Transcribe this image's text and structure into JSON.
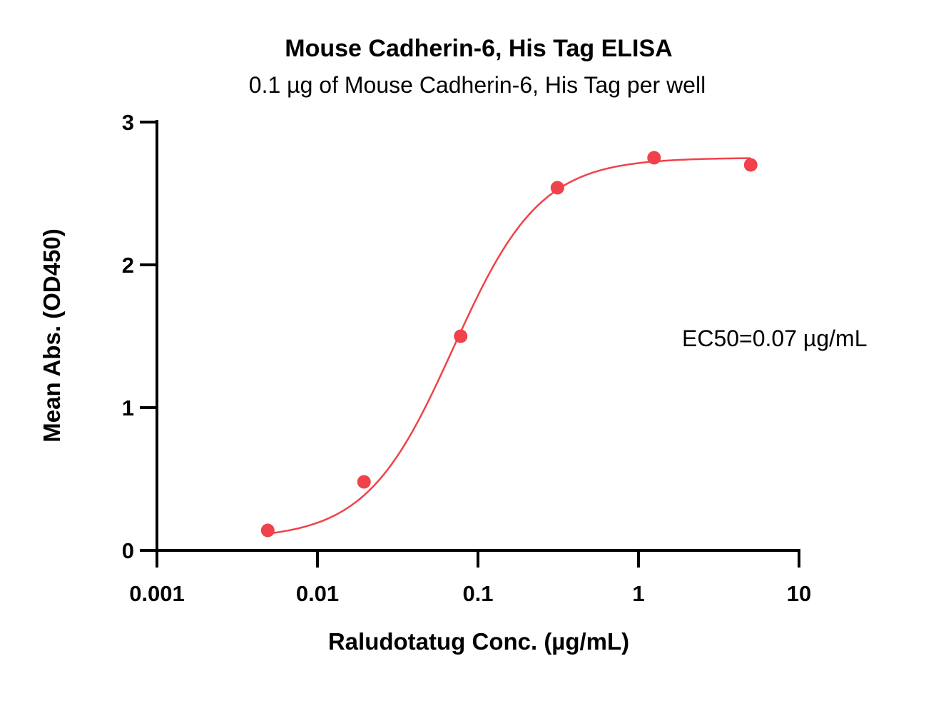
{
  "chart_data": {
    "type": "scatter",
    "title": "Mouse Cadherin-6, His Tag ELISA",
    "subtitle": "0.1 µg of Mouse Cadherin-6, His Tag per well",
    "xlabel": "Raludotatug Conc. (µg/mL)",
    "ylabel": "Mean Abs. (OD450)",
    "x_scale": "log",
    "xlim": [
      0.001,
      10
    ],
    "ylim": [
      0,
      3
    ],
    "x_ticks": [
      0.001,
      0.01,
      0.1,
      1,
      10
    ],
    "x_tick_labels": [
      "0.001",
      "0.01",
      "0.1",
      "1",
      "10"
    ],
    "y_ticks": [
      0,
      1,
      2,
      3
    ],
    "y_tick_labels": [
      "0",
      "1",
      "2",
      "3"
    ],
    "grid": false,
    "legend": false,
    "color": "#f0424a",
    "points": [
      {
        "x": 0.0049,
        "y": 0.14
      },
      {
        "x": 0.0195,
        "y": 0.48
      },
      {
        "x": 0.078,
        "y": 1.5
      },
      {
        "x": 0.3125,
        "y": 2.54
      },
      {
        "x": 1.25,
        "y": 2.75
      },
      {
        "x": 5.0,
        "y": 2.7
      }
    ],
    "fit": {
      "model": "4PL",
      "bottom": 0.08,
      "top": 2.75,
      "ec50": 0.07,
      "hill": 1.6,
      "x_range": [
        0.0049,
        5.0
      ]
    },
    "annotation": "EC50=0.07 µg/mL"
  }
}
